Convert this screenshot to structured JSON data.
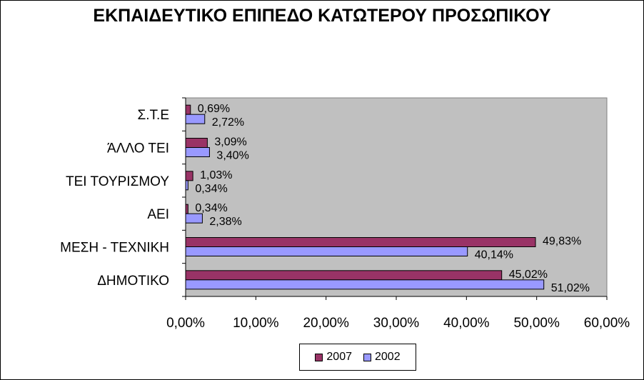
{
  "chart_data": {
    "type": "bar",
    "orientation": "horizontal",
    "title": "ΕΚΠΑΙΔΕΥΤΙΚΟ ΕΠΙΠΕΔΟ ΚΑΤΩΤΕΡΟΥ ΠΡΟΣΩΠΙΚΟΥ",
    "xlabel": "",
    "ylabel": "",
    "categories": [
      "Σ.Τ.Ε",
      "ΆΛΛΟ ΤΕΙ",
      "ΤΕΙ ΤΟΥΡΙΣΜΟΥ",
      "ΑΕΙ",
      "ΜΕΣΗ - ΤΕΧΝΙΚΗ",
      "ΔΗΜΟΤΙΚΟ"
    ],
    "series": [
      {
        "name": "2007",
        "color": "#993366",
        "values": [
          0.69,
          3.09,
          1.03,
          0.34,
          49.83,
          45.02
        ],
        "labels": [
          "0,69%",
          "3,09%",
          "1,03%",
          "0,34%",
          "49,83%",
          "45,02%"
        ]
      },
      {
        "name": "2002",
        "color": "#9999ff",
        "values": [
          2.72,
          3.4,
          0.34,
          2.38,
          40.14,
          51.02
        ],
        "labels": [
          "2,72%",
          "3,40%",
          "0,34%",
          "2,38%",
          "40,14%",
          "51,02%"
        ]
      }
    ],
    "xlim": [
      0,
      60
    ],
    "x_ticks": [
      0,
      10,
      20,
      30,
      40,
      50,
      60
    ],
    "x_tick_labels": [
      "0,00%",
      "10,00%",
      "20,00%",
      "30,00%",
      "40,00%",
      "50,00%",
      "60,00%"
    ],
    "plot_background": "#c0c0c0",
    "grid": false,
    "legend_position": "bottom"
  }
}
